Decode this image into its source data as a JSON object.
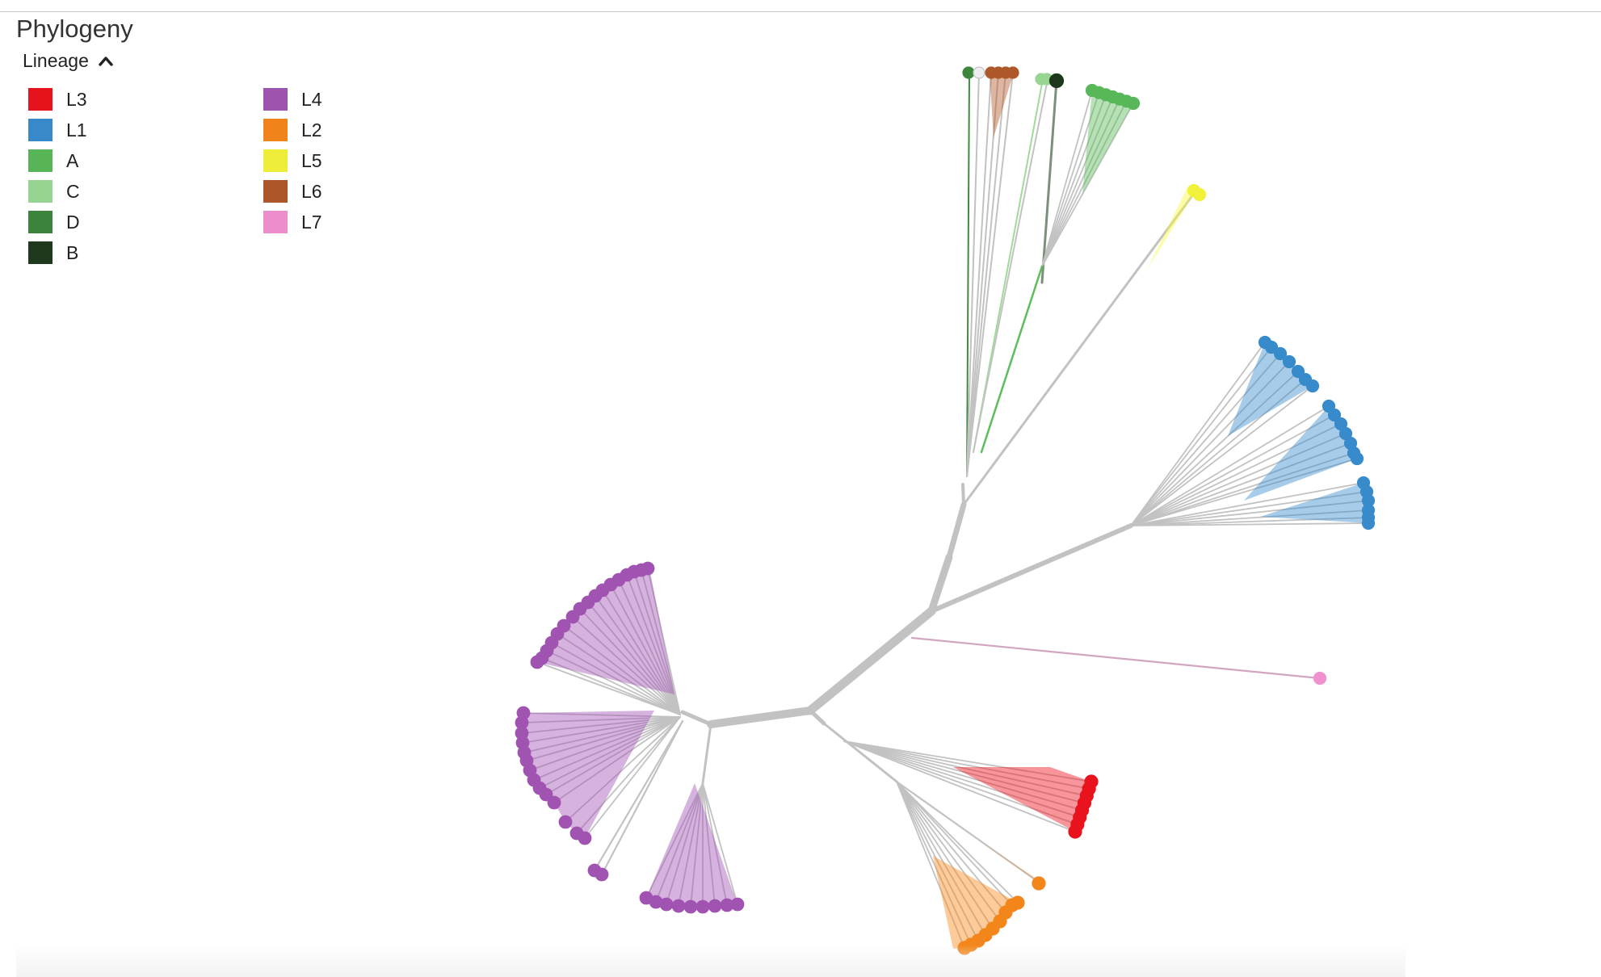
{
  "panel": {
    "title": "Phylogeny",
    "legend_label": "Lineage"
  },
  "legend": {
    "column1": [
      {
        "label": "L3",
        "color": "#f0141e"
      },
      {
        "label": "L1",
        "color": "#3a8fd1"
      },
      {
        "label": "A",
        "color": "#5bbd5b"
      },
      {
        "label": "C",
        "color": "#9ddc96"
      },
      {
        "label": "D",
        "color": "#3f8a3f"
      },
      {
        "label": "B",
        "color": "#1f3a1f"
      }
    ],
    "column2": [
      {
        "label": "L4",
        "color": "#a556b6"
      },
      {
        "label": "L2",
        "color": "#fa8a1c"
      },
      {
        "label": "L5",
        "color": "#f8f83c"
      },
      {
        "label": "L6",
        "color": "#b35a2c"
      },
      {
        "label": "L7",
        "color": "#f794d4"
      }
    ]
  },
  "colors": {
    "branch": "#c2c2c2",
    "L7_branch": "#d2a6c0"
  },
  "icons": {
    "collapse": "chevron-up-icon"
  }
}
